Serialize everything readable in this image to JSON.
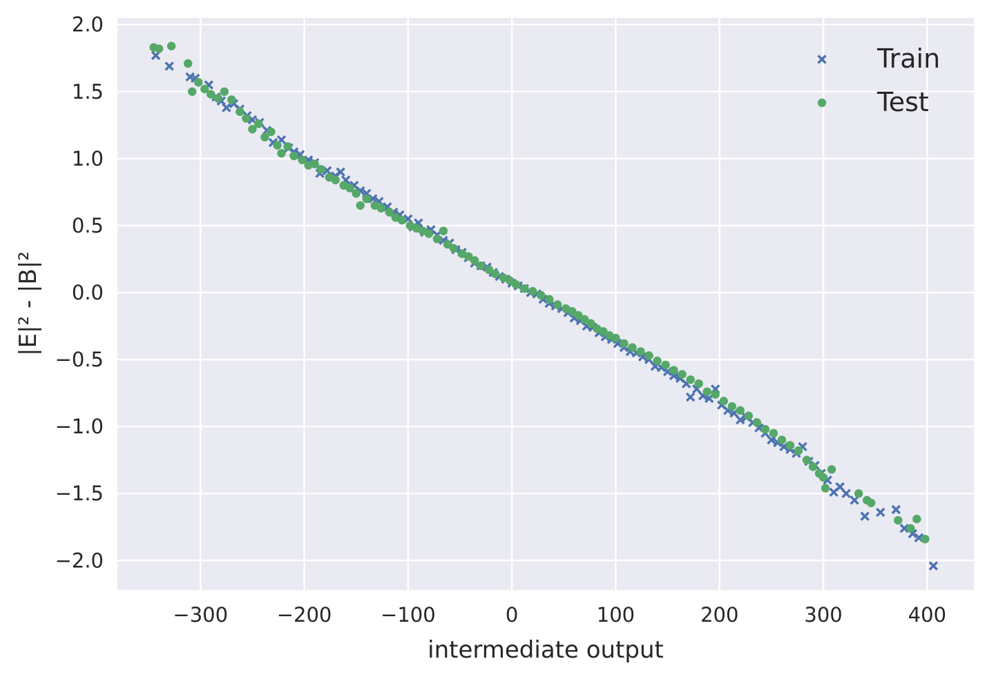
{
  "chart_data": {
    "type": "scatter",
    "title": "",
    "xlabel": "intermediate output",
    "ylabel": "|E|² - |B|²",
    "xlim": [
      -380,
      445
    ],
    "ylim": [
      -2.22,
      2.05
    ],
    "x_ticks": [
      -300,
      -200,
      -100,
      0,
      100,
      200,
      300,
      400
    ],
    "y_ticks": [
      2.0,
      1.5,
      1.0,
      0.5,
      0.0,
      -0.5,
      -1.0,
      -1.5,
      -2.0
    ],
    "x_tick_labels": [
      "−300",
      "−200",
      "−100",
      "0",
      "100",
      "200",
      "300",
      "400"
    ],
    "y_tick_labels": [
      "2.0",
      "1.5",
      "1.0",
      "0.5",
      "0.0",
      "−0.5",
      "−1.0",
      "−1.5",
      "−2.0"
    ],
    "grid": true,
    "legend_position": "top-right",
    "series": [
      {
        "name": "Train",
        "marker": "x",
        "color": "#4c72b0",
        "points": [
          [
            -343,
            1.77
          ],
          [
            -330,
            1.69
          ],
          [
            -310,
            1.61
          ],
          [
            -305,
            1.6
          ],
          [
            -292,
            1.55
          ],
          [
            -285,
            1.46
          ],
          [
            -280,
            1.43
          ],
          [
            -275,
            1.38
          ],
          [
            -268,
            1.41
          ],
          [
            -262,
            1.37
          ],
          [
            -255,
            1.32
          ],
          [
            -250,
            1.29
          ],
          [
            -243,
            1.27
          ],
          [
            -236,
            1.21
          ],
          [
            -230,
            1.12
          ],
          [
            -222,
            1.14
          ],
          [
            -215,
            1.08
          ],
          [
            -210,
            1.05
          ],
          [
            -204,
            1.03
          ],
          [
            -196,
            0.99
          ],
          [
            -190,
            0.97
          ],
          [
            -185,
            0.89
          ],
          [
            -178,
            0.91
          ],
          [
            -170,
            0.87
          ],
          [
            -165,
            0.9
          ],
          [
            -160,
            0.84
          ],
          [
            -152,
            0.8
          ],
          [
            -146,
            0.76
          ],
          [
            -140,
            0.74
          ],
          [
            -134,
            0.7
          ],
          [
            -128,
            0.68
          ],
          [
            -120,
            0.64
          ],
          [
            -114,
            0.6
          ],
          [
            -108,
            0.58
          ],
          [
            -100,
            0.55
          ],
          [
            -95,
            0.49
          ],
          [
            -90,
            0.52
          ],
          [
            -84,
            0.45
          ],
          [
            -78,
            0.47
          ],
          [
            -72,
            0.43
          ],
          [
            -66,
            0.39
          ],
          [
            -60,
            0.37
          ],
          [
            -54,
            0.32
          ],
          [
            -48,
            0.3
          ],
          [
            -42,
            0.26
          ],
          [
            -36,
            0.22
          ],
          [
            -30,
            0.2
          ],
          [
            -24,
            0.19
          ],
          [
            -18,
            0.15
          ],
          [
            -12,
            0.12
          ],
          [
            -6,
            0.1
          ],
          [
            0,
            0.07
          ],
          [
            6,
            0.05
          ],
          [
            12,
            0.03
          ],
          [
            18,
            0.0
          ],
          [
            24,
            -0.01
          ],
          [
            30,
            -0.05
          ],
          [
            36,
            -0.08
          ],
          [
            42,
            -0.1
          ],
          [
            48,
            -0.12
          ],
          [
            54,
            -0.15
          ],
          [
            60,
            -0.19
          ],
          [
            66,
            -0.21
          ],
          [
            72,
            -0.25
          ],
          [
            78,
            -0.26
          ],
          [
            84,
            -0.3
          ],
          [
            90,
            -0.33
          ],
          [
            96,
            -0.35
          ],
          [
            102,
            -0.38
          ],
          [
            108,
            -0.41
          ],
          [
            114,
            -0.44
          ],
          [
            120,
            -0.45
          ],
          [
            126,
            -0.48
          ],
          [
            132,
            -0.5
          ],
          [
            138,
            -0.55
          ],
          [
            144,
            -0.56
          ],
          [
            150,
            -0.59
          ],
          [
            156,
            -0.62
          ],
          [
            162,
            -0.64
          ],
          [
            168,
            -0.68
          ],
          [
            172,
            -0.78
          ],
          [
            178,
            -0.72
          ],
          [
            184,
            -0.77
          ],
          [
            190,
            -0.79
          ],
          [
            196,
            -0.72
          ],
          [
            202,
            -0.84
          ],
          [
            208,
            -0.88
          ],
          [
            214,
            -0.9
          ],
          [
            220,
            -0.95
          ],
          [
            226,
            -0.93
          ],
          [
            232,
            -0.97
          ],
          [
            238,
            -1.01
          ],
          [
            244,
            -1.05
          ],
          [
            250,
            -1.1
          ],
          [
            256,
            -1.12
          ],
          [
            262,
            -1.15
          ],
          [
            268,
            -1.17
          ],
          [
            274,
            -1.2
          ],
          [
            280,
            -1.15
          ],
          [
            286,
            -1.26
          ],
          [
            292,
            -1.29
          ],
          [
            298,
            -1.35
          ],
          [
            304,
            -1.4
          ],
          [
            310,
            -1.49
          ],
          [
            316,
            -1.45
          ],
          [
            322,
            -1.5
          ],
          [
            330,
            -1.55
          ],
          [
            340,
            -1.67
          ],
          [
            355,
            -1.64
          ],
          [
            370,
            -1.62
          ],
          [
            378,
            -1.76
          ],
          [
            386,
            -1.8
          ],
          [
            392,
            -1.83
          ],
          [
            406,
            -2.04
          ]
        ]
      },
      {
        "name": "Test",
        "marker": "o",
        "color": "#55a868",
        "points": [
          [
            -345,
            1.83
          ],
          [
            -340,
            1.82
          ],
          [
            -328,
            1.84
          ],
          [
            -312,
            1.71
          ],
          [
            -308,
            1.5
          ],
          [
            -302,
            1.57
          ],
          [
            -296,
            1.52
          ],
          [
            -290,
            1.48
          ],
          [
            -283,
            1.45
          ],
          [
            -277,
            1.5
          ],
          [
            -270,
            1.44
          ],
          [
            -262,
            1.35
          ],
          [
            -256,
            1.3
          ],
          [
            -250,
            1.22
          ],
          [
            -244,
            1.26
          ],
          [
            -238,
            1.16
          ],
          [
            -232,
            1.2
          ],
          [
            -226,
            1.1
          ],
          [
            -222,
            1.04
          ],
          [
            -216,
            1.09
          ],
          [
            -210,
            1.02
          ],
          [
            -202,
            0.99
          ],
          [
            -196,
            0.95
          ],
          [
            -190,
            0.96
          ],
          [
            -184,
            0.92
          ],
          [
            -176,
            0.86
          ],
          [
            -170,
            0.84
          ],
          [
            -162,
            0.8
          ],
          [
            -156,
            0.78
          ],
          [
            -150,
            0.74
          ],
          [
            -146,
            0.65
          ],
          [
            -140,
            0.7
          ],
          [
            -132,
            0.65
          ],
          [
            -126,
            0.63
          ],
          [
            -118,
            0.6
          ],
          [
            -112,
            0.56
          ],
          [
            -106,
            0.54
          ],
          [
            -98,
            0.5
          ],
          [
            -92,
            0.48
          ],
          [
            -86,
            0.46
          ],
          [
            -80,
            0.44
          ],
          [
            -72,
            0.4
          ],
          [
            -66,
            0.46
          ],
          [
            -62,
            0.36
          ],
          [
            -56,
            0.33
          ],
          [
            -48,
            0.29
          ],
          [
            -42,
            0.27
          ],
          [
            -36,
            0.24
          ],
          [
            -30,
            0.2
          ],
          [
            -22,
            0.17
          ],
          [
            -16,
            0.14
          ],
          [
            -8,
            0.11
          ],
          [
            -2,
            0.09
          ],
          [
            4,
            0.06
          ],
          [
            12,
            0.03
          ],
          [
            20,
            0.01
          ],
          [
            28,
            -0.02
          ],
          [
            36,
            -0.05
          ],
          [
            44,
            -0.09
          ],
          [
            52,
            -0.12
          ],
          [
            58,
            -0.14
          ],
          [
            64,
            -0.17
          ],
          [
            70,
            -0.2
          ],
          [
            76,
            -0.23
          ],
          [
            82,
            -0.27
          ],
          [
            88,
            -0.29
          ],
          [
            94,
            -0.32
          ],
          [
            100,
            -0.34
          ],
          [
            108,
            -0.38
          ],
          [
            116,
            -0.41
          ],
          [
            124,
            -0.44
          ],
          [
            132,
            -0.47
          ],
          [
            140,
            -0.51
          ],
          [
            148,
            -0.54
          ],
          [
            156,
            -0.58
          ],
          [
            164,
            -0.61
          ],
          [
            172,
            -0.65
          ],
          [
            180,
            -0.68
          ],
          [
            188,
            -0.74
          ],
          [
            196,
            -0.76
          ],
          [
            204,
            -0.81
          ],
          [
            212,
            -0.85
          ],
          [
            220,
            -0.88
          ],
          [
            228,
            -0.92
          ],
          [
            236,
            -0.97
          ],
          [
            244,
            -1.02
          ],
          [
            252,
            -1.05
          ],
          [
            260,
            -1.1
          ],
          [
            268,
            -1.14
          ],
          [
            276,
            -1.18
          ],
          [
            284,
            -1.25
          ],
          [
            290,
            -1.3
          ],
          [
            296,
            -1.35
          ],
          [
            300,
            -1.38
          ],
          [
            302,
            -1.46
          ],
          [
            308,
            -1.32
          ],
          [
            334,
            -1.5
          ],
          [
            342,
            -1.55
          ],
          [
            346,
            -1.57
          ],
          [
            372,
            -1.7
          ],
          [
            384,
            -1.76
          ],
          [
            390,
            -1.69
          ],
          [
            398,
            -1.84
          ]
        ]
      }
    ]
  }
}
